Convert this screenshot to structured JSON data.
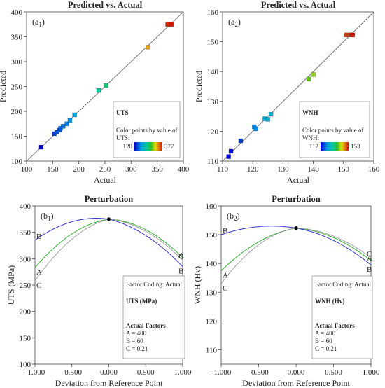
{
  "chart_data": [
    {
      "type": "scatter",
      "panel": "a1",
      "panel_label": "(a",
      "panel_sub": "1",
      "title": "Predicted vs. Actual",
      "xlabel": "Actual",
      "ylabel": "Predicted",
      "xlim": [
        100,
        400
      ],
      "ylim": [
        100,
        400
      ],
      "xticks": [
        "100",
        "150",
        "200",
        "250",
        "300",
        "350",
        "400"
      ],
      "yticks": [
        "100",
        "150",
        "200",
        "250",
        "300",
        "350",
        "400"
      ],
      "legend": {
        "title": "UTS",
        "caption_lines": [
          "Color points by value of",
          "UTS:"
        ],
        "min_label": "128",
        "max_label": "377"
      },
      "color_range": [
        128,
        377
      ],
      "points": [
        {
          "x": 128,
          "y": 128
        },
        {
          "x": 153,
          "y": 155
        },
        {
          "x": 158,
          "y": 158
        },
        {
          "x": 163,
          "y": 162
        },
        {
          "x": 165,
          "y": 166
        },
        {
          "x": 170,
          "y": 170
        },
        {
          "x": 177,
          "y": 175
        },
        {
          "x": 183,
          "y": 182
        },
        {
          "x": 192,
          "y": 193
        },
        {
          "x": 238,
          "y": 242
        },
        {
          "x": 252,
          "y": 252
        },
        {
          "x": 332,
          "y": 329
        },
        {
          "x": 370,
          "y": 375
        },
        {
          "x": 377,
          "y": 375
        }
      ]
    },
    {
      "type": "scatter",
      "panel": "a2",
      "panel_label": "(a",
      "panel_sub": "2",
      "title": "Predicted vs. Actual",
      "xlabel": "Actual",
      "ylabel": "Predicted",
      "xlim": [
        110,
        160
      ],
      "ylim": [
        110,
        160
      ],
      "xticks": [
        "110",
        "120",
        "130",
        "140",
        "150",
        "160"
      ],
      "yticks": [
        "110",
        "120",
        "130",
        "140",
        "150",
        "160"
      ],
      "legend": {
        "title": "WNH",
        "caption_lines": [
          "Color points by value of",
          "WNH:"
        ],
        "min_label": "112",
        "max_label": "153"
      },
      "color_range": [
        112,
        153
      ],
      "points": [
        {
          "x": 112,
          "y": 111.5
        },
        {
          "x": 112.8,
          "y": 113.3
        },
        {
          "x": 116,
          "y": 116.8
        },
        {
          "x": 120.5,
          "y": 121.5
        },
        {
          "x": 121,
          "y": 120.8
        },
        {
          "x": 124,
          "y": 124.2
        },
        {
          "x": 125,
          "y": 124
        },
        {
          "x": 126,
          "y": 125.7
        },
        {
          "x": 138.5,
          "y": 137.5
        },
        {
          "x": 140,
          "y": 139
        },
        {
          "x": 151,
          "y": 152.3
        },
        {
          "x": 152.5,
          "y": 152.3
        },
        {
          "x": 153,
          "y": 152.3
        }
      ]
    },
    {
      "type": "line",
      "panel": "b1",
      "panel_label": "(b",
      "panel_sub": "1",
      "title": "Perturbation",
      "xlabel": "Deviation from Reference Point",
      "ylabel": "UTS (MPa)",
      "xlim": [
        -1,
        1
      ],
      "ylim": [
        100,
        400
      ],
      "xticks": [
        "-1.000",
        "-0.500",
        "0.000",
        "0.500",
        "1.000"
      ],
      "yticks": [
        "100",
        "150",
        "200",
        "250",
        "300",
        "350",
        "400"
      ],
      "reference_point": {
        "x": 0,
        "y": 375
      },
      "series": [
        {
          "name": "A",
          "color": "#1fa81f",
          "x": [
            -1,
            -0.5,
            0,
            0.5,
            1
          ],
          "y": [
            283,
            347,
            375,
            355,
            302
          ]
        },
        {
          "name": "B",
          "color": "#2222cc",
          "x": [
            -1,
            -0.5,
            0,
            0.5,
            1
          ],
          "y": [
            335,
            370,
            375,
            344,
            285
          ]
        },
        {
          "name": "C",
          "color": "#999999",
          "x": [
            -1,
            -0.5,
            0,
            0.5,
            1
          ],
          "y": [
            258,
            337,
            375,
            352,
            297
          ]
        }
      ],
      "legend": {
        "coding": "Factor Coding: Actual",
        "response": "UTS (MPa)",
        "factors_title": "Actual Factors",
        "factors": [
          "A = 400",
          "B = 60",
          "C = 0.21"
        ]
      }
    },
    {
      "type": "line",
      "panel": "b2",
      "panel_label": "(b",
      "panel_sub": "2",
      "title": "Perturbation",
      "xlabel": "Deviation from Reference Point",
      "ylabel": "WNH (Hv)",
      "xlim": [
        -1,
        1
      ],
      "ylim": [
        105,
        160
      ],
      "xticks": [
        "-1.000",
        "-0.500",
        "0.000",
        "0.500",
        "1.000"
      ],
      "yticks": [
        "110",
        "120",
        "130",
        "140",
        "150",
        "160"
      ],
      "reference_point": {
        "x": 0,
        "y": 152.3
      },
      "series": [
        {
          "name": "A",
          "color": "#1fa81f",
          "x": [
            -1,
            -0.5,
            0,
            0.5,
            1
          ],
          "y": [
            137.5,
            147.5,
            152.3,
            149,
            141
          ]
        },
        {
          "name": "B",
          "color": "#2222cc",
          "x": [
            -1,
            -0.5,
            0,
            0.5,
            1
          ],
          "y": [
            150,
            152.8,
            152.3,
            148,
            139.5
          ]
        },
        {
          "name": "C",
          "color": "#999999",
          "x": [
            -1,
            -0.5,
            0,
            0.5,
            1
          ],
          "y": [
            133,
            146.5,
            152.3,
            149.5,
            142
          ]
        }
      ],
      "legend": {
        "coding": "Factor Coding: Actual",
        "response": "WNH (Hv)",
        "factors_title": "Actual Factors",
        "factors": [
          "A = 400",
          "B = 60",
          "C = 0.21"
        ]
      }
    }
  ]
}
